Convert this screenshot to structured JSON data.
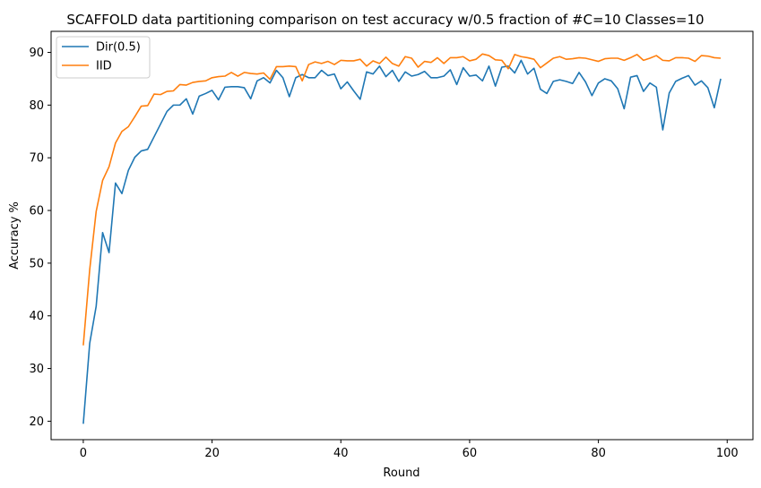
{
  "chart_data": {
    "type": "line",
    "title": "SCAFFOLD data partitioning comparison on test accuracy w/0.5 fraction of #C=10 Classes=10",
    "xlabel": "Round",
    "ylabel": "Accuracy %",
    "xlim": [
      -5,
      104
    ],
    "ylim": [
      16.5,
      94
    ],
    "xticks": [
      0,
      20,
      40,
      60,
      80,
      100
    ],
    "yticks": [
      20,
      30,
      40,
      50,
      60,
      70,
      80,
      90
    ],
    "legend_position": "top-left",
    "series": [
      {
        "name": "Dir(0.5)",
        "color": "#1f77b4",
        "values": [
          19.5,
          34.8,
          41.8,
          55.8,
          52.0,
          65.2,
          63.2,
          67.6,
          70.1,
          71.3,
          71.6,
          74.0,
          76.4,
          78.8,
          80.0,
          80.0,
          81.2,
          78.3,
          81.7,
          82.2,
          82.8,
          81.0,
          83.4,
          83.5,
          83.5,
          83.3,
          81.2,
          84.6,
          85.2,
          84.2,
          86.6,
          85.2,
          81.6,
          85.2,
          85.8,
          85.2,
          85.2,
          86.6,
          85.6,
          85.9,
          83.1,
          84.4,
          82.7,
          81.1,
          86.3,
          85.9,
          87.4,
          85.4,
          86.6,
          84.5,
          86.3,
          85.5,
          85.8,
          86.4,
          85.2,
          85.2,
          85.5,
          86.7,
          83.9,
          87.1,
          85.5,
          85.7,
          84.6,
          87.4,
          83.6,
          87.2,
          87.4,
          86.1,
          88.5,
          85.9,
          87.0,
          83.0,
          82.2,
          84.5,
          84.8,
          84.5,
          84.1,
          86.2,
          84.4,
          81.8,
          84.2,
          85.0,
          84.6,
          83.1,
          79.3,
          85.3,
          85.6,
          82.6,
          84.2,
          83.4,
          75.3,
          82.3,
          84.5,
          85.1,
          85.6,
          83.8,
          84.6,
          83.3,
          79.5,
          85.0
        ]
      },
      {
        "name": "IID",
        "color": "#ff7f0e",
        "values": [
          34.4,
          48.8,
          59.8,
          65.7,
          68.3,
          72.8,
          75.0,
          75.9,
          77.8,
          79.8,
          79.9,
          82.1,
          82.0,
          82.6,
          82.7,
          83.9,
          83.8,
          84.3,
          84.5,
          84.6,
          85.2,
          85.4,
          85.5,
          86.2,
          85.5,
          86.2,
          86.0,
          85.9,
          86.1,
          84.9,
          87.3,
          87.3,
          87.4,
          87.3,
          84.6,
          87.7,
          88.2,
          87.9,
          88.3,
          87.7,
          88.5,
          88.4,
          88.4,
          88.7,
          87.4,
          88.4,
          87.9,
          89.1,
          87.9,
          87.4,
          89.2,
          88.9,
          87.2,
          88.3,
          88.1,
          89.0,
          87.9,
          89.0,
          89.0,
          89.2,
          88.4,
          88.7,
          89.7,
          89.4,
          88.6,
          88.5,
          86.9,
          89.6,
          89.2,
          89.0,
          88.7,
          87.1,
          88.0,
          88.9,
          89.2,
          88.7,
          88.8,
          89.0,
          88.9,
          88.6,
          88.3,
          88.8,
          88.9,
          88.9,
          88.5,
          89.0,
          89.6,
          88.5,
          88.9,
          89.4,
          88.5,
          88.4,
          89.0,
          89.0,
          88.9,
          88.3,
          89.4,
          89.3,
          89.0,
          88.9
        ]
      }
    ]
  }
}
